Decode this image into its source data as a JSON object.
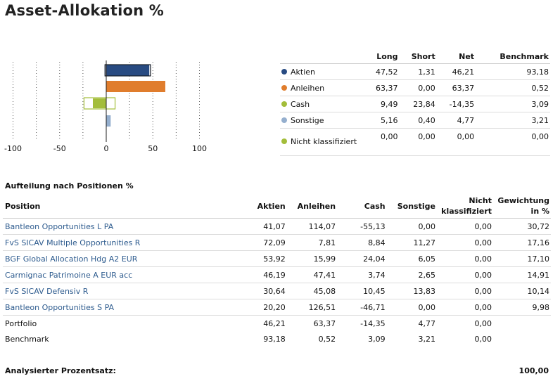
{
  "page_title": "Asset-Allokation %",
  "colors": {
    "aktien": "#284b82",
    "anleihen": "#e07d2d",
    "cash": "#a3bd3a",
    "sonstige": "#95afce",
    "nicht": "#a3bd3a",
    "link": "#2d5b8e"
  },
  "chart_data": {
    "type": "bar",
    "orientation": "horizontal",
    "categories": [
      "Aktien",
      "Anleihen",
      "Cash",
      "Sonstige",
      "Nicht klassifiziert"
    ],
    "series": [
      {
        "name": "Long",
        "values": [
          47.52,
          63.37,
          9.49,
          5.16,
          0.0
        ]
      },
      {
        "name": "Short",
        "values": [
          1.31,
          0.0,
          23.84,
          0.4,
          0.0
        ]
      },
      {
        "name": "Net",
        "values": [
          46.21,
          63.37,
          -14.35,
          4.77,
          0.0
        ]
      }
    ],
    "xlim": [
      -100,
      100
    ],
    "x_ticks": [
      -100,
      -50,
      0,
      50,
      100
    ],
    "grid": "vertical dotted"
  },
  "allocation_table": {
    "headers": [
      "",
      "Long",
      "Short",
      "Net",
      "Benchmark"
    ],
    "rows": [
      {
        "label": "Aktien",
        "long": "47,52",
        "short": "1,31",
        "net": "46,21",
        "benchmark": "93,18"
      },
      {
        "label": "Anleihen",
        "long": "63,37",
        "short": "0,00",
        "net": "63,37",
        "benchmark": "0,52"
      },
      {
        "label": "Cash",
        "long": "9,49",
        "short": "23,84",
        "net": "-14,35",
        "benchmark": "3,09"
      },
      {
        "label": "Sonstige",
        "long": "5,16",
        "short": "0,40",
        "net": "4,77",
        "benchmark": "3,21"
      },
      {
        "label": "Nicht klassifiziert",
        "long": "0,00",
        "short": "0,00",
        "net": "0,00",
        "benchmark": "0,00"
      }
    ]
  },
  "positions": {
    "section_title": "Aufteilung nach Positionen %",
    "headers": {
      "position": "Position",
      "aktien": "Aktien",
      "anleihen": "Anleihen",
      "cash": "Cash",
      "sonstige": "Sonstige",
      "nicht": "Nicht klassifiziert",
      "gewichtung": "Gewichtung in %"
    },
    "rows": [
      {
        "name": "Bantleon Opportunities L PA",
        "aktien": "41,07",
        "anleihen": "114,07",
        "cash": "-55,13",
        "sonstige": "0,00",
        "nicht": "0,00",
        "gewichtung": "30,72"
      },
      {
        "name": "FvS SICAV Multiple Opportunities R",
        "aktien": "72,09",
        "anleihen": "7,81",
        "cash": "8,84",
        "sonstige": "11,27",
        "nicht": "0,00",
        "gewichtung": "17,16"
      },
      {
        "name": "BGF Global Allocation Hdg A2 EUR",
        "aktien": "53,92",
        "anleihen": "15,99",
        "cash": "24,04",
        "sonstige": "6,05",
        "nicht": "0,00",
        "gewichtung": "17,10"
      },
      {
        "name": "Carmignac Patrimoine A EUR acc",
        "aktien": "46,19",
        "anleihen": "47,41",
        "cash": "3,74",
        "sonstige": "2,65",
        "nicht": "0,00",
        "gewichtung": "14,91"
      },
      {
        "name": "FvS SICAV Defensiv R",
        "aktien": "30,64",
        "anleihen": "45,08",
        "cash": "10,45",
        "sonstige": "13,83",
        "nicht": "0,00",
        "gewichtung": "10,14"
      },
      {
        "name": "Bantleon Opportunities S PA",
        "aktien": "20,20",
        "anleihen": "126,51",
        "cash": "-46,71",
        "sonstige": "0,00",
        "nicht": "0,00",
        "gewichtung": "9,98"
      }
    ],
    "summary_rows": [
      {
        "name": "Portfolio",
        "aktien": "46,21",
        "anleihen": "63,37",
        "cash": "-14,35",
        "sonstige": "4,77",
        "nicht": "0,00",
        "gewichtung": ""
      },
      {
        "name": "Benchmark",
        "aktien": "93,18",
        "anleihen": "0,52",
        "cash": "3,09",
        "sonstige": "3,21",
        "nicht": "0,00",
        "gewichtung": ""
      }
    ]
  },
  "analysed": {
    "label": "Analysierter Prozentsatz:",
    "value": "100,00"
  }
}
